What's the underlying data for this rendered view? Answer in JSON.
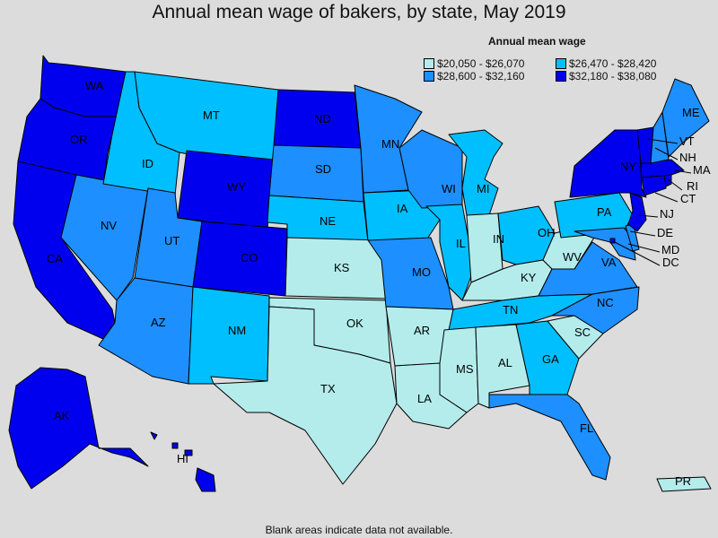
{
  "title": "Annual mean wage of bakers, by state, May 2019",
  "legend": {
    "title": "Annual mean wage",
    "bins": [
      {
        "label": "$20,050 - $26,070",
        "color": "#b4ecec"
      },
      {
        "label": "$26,470 - $28,420",
        "color": "#00bfff"
      },
      {
        "label": "$28,600 - $32,160",
        "color": "#1e8fff"
      },
      {
        "label": "$32,180 - $38,080",
        "color": "#0000ee"
      }
    ]
  },
  "footnote": "Blank areas indicate data not available.",
  "states": {
    "WA": 3,
    "OR": 3,
    "CA": 3,
    "NV": 2,
    "ID": 1,
    "MT": 1,
    "WY": 3,
    "UT": 2,
    "AZ": 2,
    "CO": 3,
    "NM": 1,
    "ND": 3,
    "SD": 2,
    "NE": 1,
    "KS": 0,
    "OK": 0,
    "TX": 0,
    "MN": 2,
    "IA": 1,
    "MO": 2,
    "AR": 0,
    "LA": 0,
    "WI": 2,
    "IL": 1,
    "MI": 1,
    "IN": 0,
    "OH": 1,
    "KY": 0,
    "TN": 1,
    "MS": 0,
    "AL": 0,
    "GA": 1,
    "FL": 2,
    "SC": 0,
    "NC": 2,
    "VA": 2,
    "WV": 0,
    "PA": 1,
    "NY": 3,
    "VT": 3,
    "NH": 2,
    "ME": 2,
    "MA": 3,
    "RI": 3,
    "CT": 3,
    "NJ": 3,
    "DE": 2,
    "MD": 2,
    "DC": 3,
    "AK": 3,
    "HI": 3,
    "PR": 0
  },
  "labels": [
    "WA",
    "OR",
    "CA",
    "NV",
    "ID",
    "MT",
    "WY",
    "UT",
    "AZ",
    "CO",
    "NM",
    "ND",
    "SD",
    "NE",
    "KS",
    "OK",
    "TX",
    "MN",
    "IA",
    "MO",
    "AR",
    "LA",
    "WI",
    "IL",
    "MI",
    "IN",
    "OH",
    "KY",
    "TN",
    "MS",
    "AL",
    "GA",
    "FL",
    "SC",
    "NC",
    "VA",
    "WV",
    "PA",
    "NY",
    "ME",
    "VT",
    "NH",
    "MA",
    "RI",
    "CT",
    "NJ",
    "DE",
    "MD",
    "DC",
    "AK",
    "HI",
    "PR"
  ]
}
